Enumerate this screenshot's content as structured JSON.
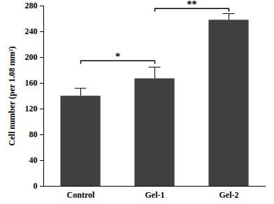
{
  "chart_data": {
    "type": "bar",
    "categories": [
      "Control",
      "Gel-1",
      "Gel-2"
    ],
    "values": [
      140,
      167,
      258
    ],
    "errors": [
      12,
      18,
      10
    ],
    "color": "#404040",
    "y_label": "Cell number (per 1.08 mm²)",
    "ylim": [
      0,
      280
    ],
    "yticks": [
      0,
      40,
      80,
      120,
      160,
      200,
      240,
      280
    ],
    "grid": false,
    "annotations": [
      {
        "text": "*",
        "from": "Control",
        "to": "Gel-1",
        "y": 195
      },
      {
        "text": "**",
        "from": "Gel-1",
        "to": "Gel-2",
        "y": 276
      }
    ]
  }
}
